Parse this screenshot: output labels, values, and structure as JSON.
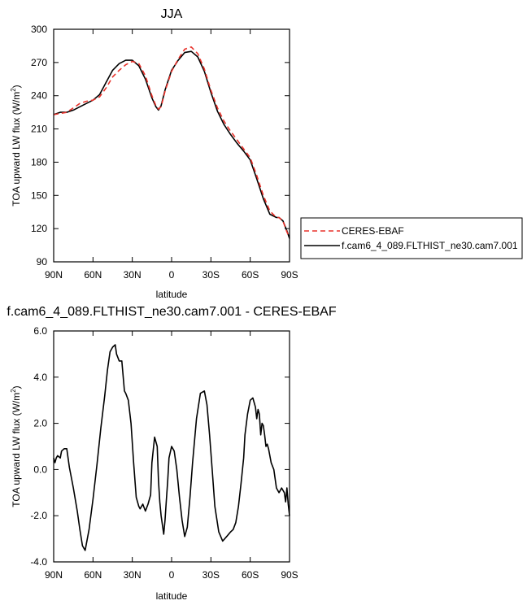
{
  "chart_data": [
    {
      "type": "line",
      "title": "JJA",
      "xlabel": "latitude",
      "ylabel": "TOA upward LW flux (W/m",
      "ylabel_sup": "2",
      "ylabel_close": ")",
      "xlim": [
        90,
        -90
      ],
      "ylim": [
        90,
        300
      ],
      "x_ticks": [
        90,
        60,
        30,
        0,
        -30,
        -60,
        -90
      ],
      "x_tick_labels": [
        "90N",
        "60N",
        "30N",
        "0",
        "30S",
        "60S",
        "90S"
      ],
      "y_ticks": [
        90,
        120,
        150,
        180,
        210,
        240,
        270,
        300
      ],
      "y_tick_labels": [
        "90",
        "120",
        "150",
        "180",
        "210",
        "240",
        "270",
        "300"
      ],
      "legend": {
        "placement": "right",
        "entries": [
          "CERES-EBAF",
          "f.cam6_4_089.FLTHIST_ne30.cam7.001"
        ]
      },
      "series": [
        {
          "name": "CERES-EBAF",
          "color": "#e8312a",
          "dash": "dashed",
          "x": [
            90,
            85,
            80,
            75,
            70,
            65,
            60,
            55,
            50,
            45,
            40,
            35,
            30,
            25,
            20,
            15,
            12,
            10,
            8,
            5,
            0,
            -5,
            -10,
            -15,
            -20,
            -25,
            -30,
            -35,
            -40,
            -45,
            -50,
            -55,
            -60,
            -65,
            -70,
            -75,
            -80,
            -82,
            -85,
            -88,
            -90
          ],
          "y": [
            223,
            224,
            225,
            229,
            233,
            235,
            236,
            239,
            247,
            257,
            263,
            268,
            271,
            269,
            258,
            240,
            231,
            228,
            230,
            244,
            262,
            273,
            282,
            284,
            278,
            264,
            245,
            229,
            217,
            208,
            200,
            192,
            184,
            168,
            150,
            136,
            130,
            130,
            127,
            117,
            112
          ]
        },
        {
          "name": "f.cam6_4_089.FLTHIST_ne30.cam7.001",
          "color": "#000000",
          "dash": "solid",
          "x": [
            90,
            85,
            80,
            75,
            70,
            65,
            60,
            55,
            50,
            45,
            40,
            35,
            30,
            25,
            20,
            15,
            12,
            10,
            8,
            5,
            0,
            -5,
            -10,
            -15,
            -20,
            -25,
            -30,
            -35,
            -40,
            -45,
            -50,
            -55,
            -60,
            -65,
            -70,
            -75,
            -80,
            -82,
            -85,
            -88,
            -90
          ],
          "y": [
            223,
            225,
            225,
            227,
            230,
            233,
            236,
            241,
            252,
            263,
            269,
            272,
            272,
            267,
            255,
            238,
            230,
            227,
            231,
            245,
            263,
            272,
            279,
            280,
            275,
            262,
            243,
            226,
            214,
            205,
            197,
            190,
            182,
            165,
            147,
            133,
            130,
            130,
            127,
            118,
            111
          ]
        }
      ]
    },
    {
      "type": "line",
      "title": "f.cam6_4_089.FLTHIST_ne30.cam7.001 - CERES-EBAF",
      "xlabel": "latitude",
      "ylabel": "TOA upward LW flux (W/m",
      "ylabel_sup": "2",
      "ylabel_close": ")",
      "xlim": [
        90,
        -90
      ],
      "ylim": [
        -4.0,
        6.0
      ],
      "x_ticks": [
        90,
        60,
        30,
        0,
        -30,
        -60,
        -90
      ],
      "x_tick_labels": [
        "90N",
        "60N",
        "30N",
        "0",
        "30S",
        "60S",
        "90S"
      ],
      "y_ticks": [
        -4,
        -2,
        0,
        2,
        4,
        6
      ],
      "y_tick_labels": [
        "-4.0",
        "-2.0",
        "0.0",
        "2.0",
        "4.0",
        "6.0"
      ],
      "series": [
        {
          "color": "#000000",
          "dash": "solid",
          "x": [
            90,
            89,
            88,
            87,
            85,
            84,
            82,
            80,
            79,
            78,
            75,
            72,
            70,
            68,
            66,
            63,
            60,
            57,
            54,
            51,
            49,
            47,
            45,
            43,
            42,
            40,
            38,
            36,
            35,
            33,
            31,
            29,
            27,
            25,
            24,
            22,
            20,
            18,
            16,
            15,
            13,
            11,
            10,
            9,
            8,
            6,
            5,
            4,
            3,
            2,
            0,
            -2,
            -4,
            -6,
            -8,
            -10,
            -12,
            -14,
            -16,
            -19,
            -22,
            -25,
            -27,
            -29,
            -31,
            -33,
            -36,
            -39,
            -42,
            -45,
            -47,
            -49,
            -51,
            -53,
            -55,
            -56,
            -58,
            -60,
            -62,
            -64,
            -65,
            -66,
            -67,
            -68,
            -69,
            -70,
            -71,
            -72,
            -73,
            -74,
            -76,
            -78,
            -80,
            -82,
            -84,
            -86,
            -87,
            -88,
            -89,
            -90
          ],
          "y": [
            0.5,
            0.3,
            0.5,
            0.6,
            0.5,
            0.8,
            0.9,
            0.9,
            0.5,
            0.1,
            -0.8,
            -1.8,
            -2.6,
            -3.3,
            -3.5,
            -2.6,
            -1.3,
            0.2,
            1.8,
            3.2,
            4.3,
            5.1,
            5.3,
            5.4,
            5.0,
            4.7,
            4.7,
            3.4,
            3.3,
            3.0,
            2.0,
            0.3,
            -1.2,
            -1.6,
            -1.7,
            -1.5,
            -1.8,
            -1.5,
            -1.1,
            0.3,
            1.4,
            1.0,
            -0.5,
            -1.4,
            -2.0,
            -2.8,
            -2.2,
            -1.3,
            -0.5,
            0.5,
            1.0,
            0.8,
            0.0,
            -1.2,
            -2.2,
            -2.9,
            -2.5,
            -1.2,
            0.3,
            2.2,
            3.3,
            3.4,
            2.8,
            1.5,
            0.0,
            -1.6,
            -2.7,
            -3.1,
            -2.9,
            -2.7,
            -2.6,
            -2.3,
            -1.6,
            -0.6,
            0.5,
            1.5,
            2.4,
            3.0,
            3.1,
            2.7,
            2.2,
            2.6,
            2.4,
            1.5,
            2.0,
            1.9,
            1.5,
            1.0,
            1.1,
            0.9,
            0.3,
            0.0,
            -0.8,
            -1.0,
            -0.8,
            -1.0,
            -1.4,
            -0.8,
            -1.5,
            -2.0
          ]
        }
      ]
    }
  ]
}
